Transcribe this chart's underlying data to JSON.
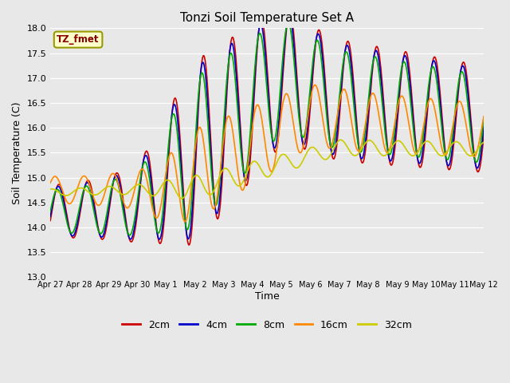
{
  "title": "Tonzi Soil Temperature Set A",
  "xlabel": "Time",
  "ylabel": "Soil Temperature (C)",
  "ylim": [
    13.0,
    18.0
  ],
  "yticks": [
    13.0,
    13.5,
    14.0,
    14.5,
    15.0,
    15.5,
    16.0,
    16.5,
    17.0,
    17.5,
    18.0
  ],
  "xtick_labels": [
    "Apr 27",
    "Apr 28",
    "Apr 29",
    "Apr 30",
    "May 1",
    "May 2",
    "May 3",
    "May 4",
    "May 5",
    "May 6",
    "May 7",
    "May 8",
    "May 9",
    "May 10",
    "May 11",
    "May 12"
  ],
  "line_colors": [
    "#cc0000",
    "#0000cc",
    "#00aa00",
    "#ff8800",
    "#cccc00"
  ],
  "line_labels": [
    "2cm",
    "4cm",
    "8cm",
    "16cm",
    "32cm"
  ],
  "line_width": 1.2,
  "bg_color": "#e8e8e8",
  "annotation_text": "TZ_fmet",
  "annotation_bg": "#ffffcc",
  "annotation_border": "#999900",
  "annotation_text_color": "#880000",
  "n_points": 721,
  "days": 15
}
